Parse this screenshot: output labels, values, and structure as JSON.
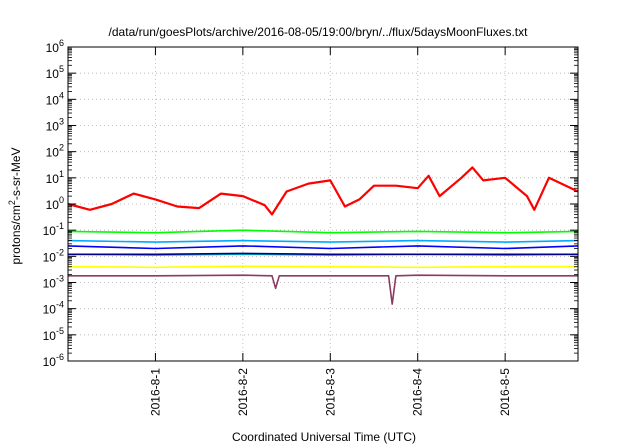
{
  "chart_data": {
    "type": "line",
    "title": "/data/run/goesPlots/archive/2016-08-05/19:00/bryn/../flux/5daysMoonFluxes.txt",
    "xlabel": "Coordinated Universal Time (UTC)",
    "ylabel_parts": [
      "protons/cm",
      "2",
      "-s-sr-MeV"
    ],
    "y_scale": "log",
    "ylim": [
      1e-06,
      1000000.0
    ],
    "y_ticks": [
      {
        "exp": "-6",
        "value": 1e-06
      },
      {
        "exp": "-5",
        "value": 1e-05
      },
      {
        "exp": "-4",
        "value": 0.0001
      },
      {
        "exp": "-3",
        "value": 0.001
      },
      {
        "exp": "-2",
        "value": 0.01
      },
      {
        "exp": "-1",
        "value": 0.1
      },
      {
        "exp": "0",
        "value": 1
      },
      {
        "exp": "1",
        "value": 10
      },
      {
        "exp": "2",
        "value": 100
      },
      {
        "exp": "3",
        "value": 1000
      },
      {
        "exp": "4",
        "value": 10000
      },
      {
        "exp": "5",
        "value": 100000
      },
      {
        "exp": "6",
        "value": 1000000
      }
    ],
    "y_tick_base": "10",
    "xlim": [
      "2016-07-31 00:00",
      "2016-08-05 20:00"
    ],
    "x_ticks": [
      {
        "label": "2016-8-1",
        "value": "2016-08-01"
      },
      {
        "label": "2016-8-2",
        "value": "2016-08-02"
      },
      {
        "label": "2016-8-3",
        "value": "2016-08-03"
      },
      {
        "label": "2016-8-4",
        "value": "2016-08-04"
      },
      {
        "label": "2016-8-5",
        "value": "2016-08-05"
      }
    ],
    "grid": true,
    "series": [
      {
        "color": "#ff0000",
        "width": 2.2,
        "x": [
          "2016-07-31 00:00",
          "2016-07-31 06:00",
          "2016-07-31 12:00",
          "2016-07-31 18:00",
          "2016-08-01 00:00",
          "2016-08-01 06:00",
          "2016-08-01 12:00",
          "2016-08-01 18:00",
          "2016-08-02 00:00",
          "2016-08-02 06:00",
          "2016-08-02 08:00",
          "2016-08-02 12:00",
          "2016-08-02 18:00",
          "2016-08-03 00:00",
          "2016-08-03 04:00",
          "2016-08-03 08:00",
          "2016-08-03 12:00",
          "2016-08-03 18:00",
          "2016-08-04 00:00",
          "2016-08-04 03:00",
          "2016-08-04 06:00",
          "2016-08-04 12:00",
          "2016-08-04 15:00",
          "2016-08-04 18:00",
          "2016-08-05 00:00",
          "2016-08-05 06:00",
          "2016-08-05 08:00",
          "2016-08-05 12:00",
          "2016-08-05 20:00"
        ],
        "y": [
          1.0,
          0.6,
          1.0,
          2.5,
          1.5,
          0.8,
          0.7,
          2.5,
          2.0,
          0.9,
          0.4,
          3.0,
          6.0,
          8.0,
          0.8,
          1.5,
          5.0,
          5.0,
          4.0,
          12.0,
          2.0,
          10.0,
          25.0,
          8.0,
          10.0,
          2.0,
          0.6,
          10.0,
          3.0
        ]
      },
      {
        "color": "#00ff00",
        "width": 1.6,
        "x": [
          "2016-07-31 00:00",
          "2016-08-01 00:00",
          "2016-08-02 00:00",
          "2016-08-03 00:00",
          "2016-08-04 00:00",
          "2016-08-05 00:00",
          "2016-08-05 20:00"
        ],
        "y": [
          0.09,
          0.08,
          0.1,
          0.08,
          0.09,
          0.08,
          0.09
        ]
      },
      {
        "color": "#00aaff",
        "width": 1.6,
        "x": [
          "2016-07-31 00:00",
          "2016-08-01 00:00",
          "2016-08-02 00:00",
          "2016-08-03 00:00",
          "2016-08-04 00:00",
          "2016-08-05 00:00",
          "2016-08-05 20:00"
        ],
        "y": [
          0.04,
          0.035,
          0.04,
          0.035,
          0.04,
          0.035,
          0.04
        ]
      },
      {
        "color": "#0000ff",
        "width": 1.6,
        "x": [
          "2016-07-31 00:00",
          "2016-08-01 00:00",
          "2016-08-02 00:00",
          "2016-08-03 00:00",
          "2016-08-04 00:00",
          "2016-08-05 00:00",
          "2016-08-05 20:00"
        ],
        "y": [
          0.025,
          0.02,
          0.025,
          0.02,
          0.025,
          0.02,
          0.025
        ]
      },
      {
        "color": "#00cccc",
        "width": 1.4,
        "x": [
          "2016-07-31 00:00",
          "2016-08-01 00:00",
          "2016-08-02 00:00",
          "2016-08-03 00:00",
          "2016-08-04 00:00",
          "2016-08-05 00:00",
          "2016-08-05 20:00"
        ],
        "y": [
          0.012,
          0.011,
          0.012,
          0.011,
          0.012,
          0.011,
          0.012
        ]
      },
      {
        "color": "#00008b",
        "width": 1.6,
        "x": [
          "2016-07-31 00:00",
          "2016-08-01 00:00",
          "2016-08-02 00:00",
          "2016-08-03 00:00",
          "2016-08-04 00:00",
          "2016-08-05 00:00",
          "2016-08-05 20:00"
        ],
        "y": [
          0.012,
          0.012,
          0.013,
          0.012,
          0.012,
          0.012,
          0.012
        ]
      },
      {
        "color": "#ffff00",
        "width": 1.6,
        "x": [
          "2016-07-31 00:00",
          "2016-08-01 00:00",
          "2016-08-02 00:00",
          "2016-08-03 00:00",
          "2016-08-04 00:00",
          "2016-08-05 00:00",
          "2016-08-05 20:00"
        ],
        "y": [
          0.004,
          0.0038,
          0.0042,
          0.004,
          0.0038,
          0.004,
          0.004
        ]
      },
      {
        "color": "#8b3a62",
        "width": 1.6,
        "x": [
          "2016-07-31 00:00",
          "2016-08-01 00:00",
          "2016-08-02 00:00",
          "2016-08-02 08:00",
          "2016-08-02 09:00",
          "2016-08-02 10:00",
          "2016-08-03 00:00",
          "2016-08-03 16:00",
          "2016-08-03 17:00",
          "2016-08-03 18:00",
          "2016-08-04 00:00",
          "2016-08-05 00:00",
          "2016-08-05 20:00"
        ],
        "y": [
          0.0018,
          0.0018,
          0.0019,
          0.0018,
          0.0006,
          0.0018,
          0.0018,
          0.0018,
          0.00015,
          0.0018,
          0.0019,
          0.0018,
          0.0018
        ]
      }
    ]
  }
}
